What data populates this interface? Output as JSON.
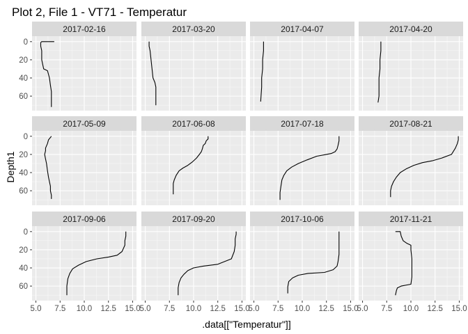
{
  "chart_data": {
    "type": "line",
    "title": "Plot 2, File 1 - VT71  -  Temperatur",
    "xlabel": ".data[[\"Temperatur\"]]",
    "ylabel": "Depth1",
    "xlim": [
      4.6,
      15.4
    ],
    "ylim": [
      76,
      -6
    ],
    "y_reversed": true,
    "grid": true,
    "facets": [
      "2017-02-16",
      "2017-03-20",
      "2017-04-07",
      "2017-04-20",
      "2017-05-09",
      "2017-06-08",
      "2017-07-18",
      "2017-08-21",
      "2017-09-06",
      "2017-09-20",
      "2017-10-06",
      "2017-11-21"
    ],
    "x_ticks": [
      5.0,
      7.5,
      10.0,
      12.5,
      15.0
    ],
    "x_tick_labels": [
      "5.0",
      "7.5",
      "10.0",
      "12.5",
      "15.0"
    ],
    "y_ticks": [
      0,
      20,
      40,
      60
    ],
    "y_tick_labels": [
      "0",
      "20",
      "40",
      "60"
    ],
    "series": [
      {
        "facet": "2017-02-16",
        "x": [
          6.9,
          5.6,
          5.5,
          5.5,
          5.6,
          5.6,
          5.8,
          6.2,
          6.4,
          6.5,
          6.6,
          6.6,
          6.6
        ],
        "y": [
          0,
          0,
          1,
          5,
          10,
          20,
          30,
          32,
          40,
          48,
          55,
          62,
          72
        ]
      },
      {
        "facet": "2017-03-20",
        "x": [
          5.4,
          5.4,
          5.5,
          5.6,
          5.7,
          5.8,
          6.0,
          6.1,
          6.1,
          6.1
        ],
        "y": [
          0,
          5,
          10,
          20,
          30,
          40,
          45,
          50,
          60,
          70
        ]
      },
      {
        "facet": "2017-04-07",
        "x": [
          6.0,
          6.0,
          5.9,
          5.9,
          5.8,
          5.8,
          5.7
        ],
        "y": [
          0,
          10,
          20,
          30,
          40,
          50,
          66
        ]
      },
      {
        "facet": "2017-04-20",
        "x": [
          6.9,
          6.9,
          6.8,
          6.8,
          6.7,
          6.7,
          6.7,
          6.6
        ],
        "y": [
          0,
          10,
          20,
          30,
          40,
          50,
          60,
          67
        ]
      },
      {
        "facet": "2017-05-09",
        "x": [
          6.6,
          6.3,
          6.2,
          6.0,
          6.0,
          5.9,
          6.0,
          6.1,
          6.2,
          6.3,
          6.4,
          6.5,
          6.5,
          6.6,
          6.6
        ],
        "y": [
          0,
          4,
          8,
          13,
          16,
          20,
          25,
          30,
          38,
          45,
          50,
          55,
          60,
          65,
          69
        ]
      },
      {
        "facet": "2017-06-08",
        "x": [
          11.5,
          11.5,
          11.3,
          11.2,
          11.0,
          10.9,
          10.8,
          10.6,
          10.3,
          9.9,
          9.4,
          8.9,
          8.5,
          8.2,
          8.0,
          7.9,
          7.9,
          7.9
        ],
        "y": [
          0,
          3,
          5,
          8,
          10,
          14,
          17,
          20,
          24,
          28,
          32,
          35,
          38,
          43,
          48,
          52,
          58,
          64
        ]
      },
      {
        "facet": "2017-07-18",
        "x": [
          13.8,
          13.8,
          13.7,
          13.6,
          13.4,
          13.0,
          12.5,
          11.5,
          10.5,
          9.6,
          8.9,
          8.4,
          8.1,
          7.9,
          7.8,
          7.7,
          7.7
        ],
        "y": [
          0,
          5,
          10,
          14,
          17,
          19,
          20,
          22,
          26,
          30,
          34,
          38,
          43,
          48,
          55,
          62,
          70
        ]
      },
      {
        "facet": "2017-08-21",
        "x": [
          14.9,
          14.9,
          14.8,
          14.6,
          14.2,
          13.2,
          12.2,
          11.2,
          10.3,
          9.5,
          8.9,
          8.5,
          8.2,
          8.0,
          7.9,
          7.9
        ],
        "y": [
          0,
          4,
          8,
          13,
          20,
          24,
          27,
          29,
          32,
          36,
          40,
          45,
          50,
          55,
          60,
          67
        ]
      },
      {
        "facet": "2017-09-06",
        "x": [
          14.3,
          14.3,
          14.2,
          14.2,
          13.9,
          13.4,
          12.5,
          11.3,
          10.2,
          9.4,
          8.8,
          8.5,
          8.3,
          8.2,
          8.2
        ],
        "y": [
          0,
          5,
          10,
          15,
          22,
          26,
          28,
          30,
          33,
          37,
          41,
          46,
          52,
          60,
          70
        ]
      },
      {
        "facet": "2017-09-20",
        "x": [
          14.4,
          14.4,
          14.3,
          14.3,
          14.2,
          13.9,
          12.5,
          11.0,
          10.0,
          9.4,
          9.0,
          8.7,
          8.5,
          8.4,
          8.4
        ],
        "y": [
          0,
          3,
          8,
          15,
          22,
          30,
          36,
          38,
          40,
          43,
          47,
          51,
          56,
          62,
          70
        ]
      },
      {
        "facet": "2017-10-06",
        "x": [
          13.8,
          13.8,
          13.8,
          13.8,
          13.7,
          13.6,
          13.2,
          12.3,
          10.6,
          9.6,
          9.0,
          8.6,
          8.5,
          8.5
        ],
        "y": [
          0,
          8,
          15,
          25,
          33,
          38,
          42,
          45,
          46,
          48,
          51,
          55,
          61,
          68
        ]
      },
      {
        "facet": "2017-11-21",
        "x": [
          8.4,
          8.9,
          9.0,
          9.2,
          9.6,
          10.0,
          10.0,
          10.1,
          10.1,
          10.1,
          10.0,
          9.0,
          8.6,
          8.5,
          8.4
        ],
        "y": [
          0,
          0,
          5,
          10,
          13,
          15,
          20,
          30,
          40,
          50,
          58,
          60,
          62,
          65,
          70
        ]
      }
    ]
  }
}
